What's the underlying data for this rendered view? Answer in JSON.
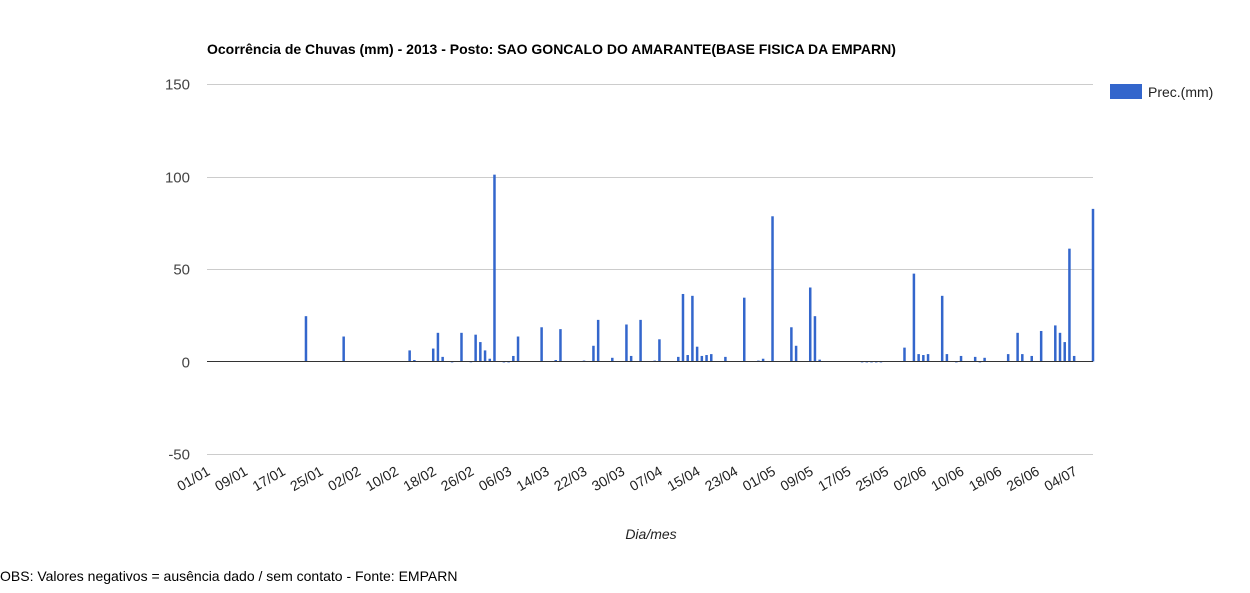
{
  "chart_data": {
    "type": "bar",
    "title": "Ocorrência de Chuvas (mm) - 2013 - Posto: SAO GONCALO DO AMARANTE(BASE FISICA DA EMPARN)",
    "xlabel": "Dia/mes",
    "ylabel": "",
    "ylim": [
      -50,
      150
    ],
    "yticks": [
      -50,
      0,
      50,
      100,
      150
    ],
    "grid": true,
    "legend_position": "right",
    "legend_color": "#3366cc",
    "bar_color": "#3366cc",
    "x_start": "01/01",
    "x_end": "08/07",
    "xticks": [
      "01/01",
      "09/01",
      "17/01",
      "25/01",
      "02/02",
      "10/02",
      "18/02",
      "26/02",
      "06/03",
      "14/03",
      "22/03",
      "30/03",
      "07/04",
      "15/04",
      "23/04",
      "01/05",
      "09/05",
      "17/05",
      "25/05",
      "02/06",
      "10/06",
      "18/06",
      "26/06",
      "04/07"
    ],
    "series": [
      {
        "name": "Prec.(mm)",
        "points": [
          {
            "x": "22/01",
            "y": 24.5
          },
          {
            "x": "30/01",
            "y": 13.5
          },
          {
            "x": "13/02",
            "y": 6
          },
          {
            "x": "14/02",
            "y": 0.8
          },
          {
            "x": "18/02",
            "y": 7
          },
          {
            "x": "19/02",
            "y": 15.5
          },
          {
            "x": "20/02",
            "y": 2.5
          },
          {
            "x": "22/02",
            "y": -0.5
          },
          {
            "x": "24/02",
            "y": 15.5
          },
          {
            "x": "26/02",
            "y": -0.3
          },
          {
            "x": "27/02",
            "y": 14.5
          },
          {
            "x": "28/02",
            "y": 10.5
          },
          {
            "x": "01/03",
            "y": 6
          },
          {
            "x": "02/03",
            "y": 1.5
          },
          {
            "x": "03/03",
            "y": 101
          },
          {
            "x": "05/03",
            "y": -0.5
          },
          {
            "x": "06/03",
            "y": -0.5
          },
          {
            "x": "07/03",
            "y": 3
          },
          {
            "x": "08/03",
            "y": 13.5
          },
          {
            "x": "13/03",
            "y": 18.5
          },
          {
            "x": "16/03",
            "y": 0.8
          },
          {
            "x": "17/03",
            "y": 17.5
          },
          {
            "x": "22/03",
            "y": 0.5
          },
          {
            "x": "24/03",
            "y": 8.5
          },
          {
            "x": "25/03",
            "y": 22.5
          },
          {
            "x": "28/03",
            "y": 2
          },
          {
            "x": "31/03",
            "y": 20
          },
          {
            "x": "01/04",
            "y": 3
          },
          {
            "x": "03/04",
            "y": 22.5
          },
          {
            "x": "06/04",
            "y": 0.5
          },
          {
            "x": "07/04",
            "y": 12
          },
          {
            "x": "11/04",
            "y": 2.5
          },
          {
            "x": "12/04",
            "y": 36.5
          },
          {
            "x": "13/04",
            "y": 3.5
          },
          {
            "x": "14/04",
            "y": 35.5
          },
          {
            "x": "15/04",
            "y": 8
          },
          {
            "x": "16/04",
            "y": 3
          },
          {
            "x": "17/04",
            "y": 3.5
          },
          {
            "x": "18/04",
            "y": 4
          },
          {
            "x": "21/04",
            "y": 2.5
          },
          {
            "x": "25/04",
            "y": 34.5
          },
          {
            "x": "28/04",
            "y": 0.5
          },
          {
            "x": "29/04",
            "y": 1.5
          },
          {
            "x": "01/05",
            "y": 78.5
          },
          {
            "x": "05/05",
            "y": 18.5
          },
          {
            "x": "06/05",
            "y": 8.5
          },
          {
            "x": "09/05",
            "y": 40
          },
          {
            "x": "10/05",
            "y": 24.5
          },
          {
            "x": "11/05",
            "y": 1
          },
          {
            "x": "20/05",
            "y": -0.5
          },
          {
            "x": "21/05",
            "y": -0.5
          },
          {
            "x": "22/05",
            "y": -0.5
          },
          {
            "x": "23/05",
            "y": -0.5
          },
          {
            "x": "24/05",
            "y": -0.5
          },
          {
            "x": "29/05",
            "y": 7.5
          },
          {
            "x": "31/05",
            "y": 47.5
          },
          {
            "x": "01/06",
            "y": 4
          },
          {
            "x": "02/06",
            "y": 3.5
          },
          {
            "x": "03/06",
            "y": 4
          },
          {
            "x": "06/06",
            "y": 35.5
          },
          {
            "x": "07/06",
            "y": 4
          },
          {
            "x": "09/06",
            "y": -0.5
          },
          {
            "x": "10/06",
            "y": 3
          },
          {
            "x": "13/06",
            "y": 2.5
          },
          {
            "x": "14/06",
            "y": -0.5
          },
          {
            "x": "15/06",
            "y": 2
          },
          {
            "x": "20/06",
            "y": 4
          },
          {
            "x": "22/06",
            "y": 15.5
          },
          {
            "x": "23/06",
            "y": 4
          },
          {
            "x": "25/06",
            "y": 3
          },
          {
            "x": "27/06",
            "y": 16.5
          },
          {
            "x": "30/06",
            "y": 19.5
          },
          {
            "x": "01/07",
            "y": 15.5
          },
          {
            "x": "02/07",
            "y": 10.5
          },
          {
            "x": "03/07",
            "y": 61
          },
          {
            "x": "04/07",
            "y": 3
          },
          {
            "x": "08/07",
            "y": 82.5
          }
        ]
      }
    ]
  },
  "footer": {
    "note": "OBS: Valores negativos = ausência dado / sem contato - Fonte: EMPARN"
  }
}
